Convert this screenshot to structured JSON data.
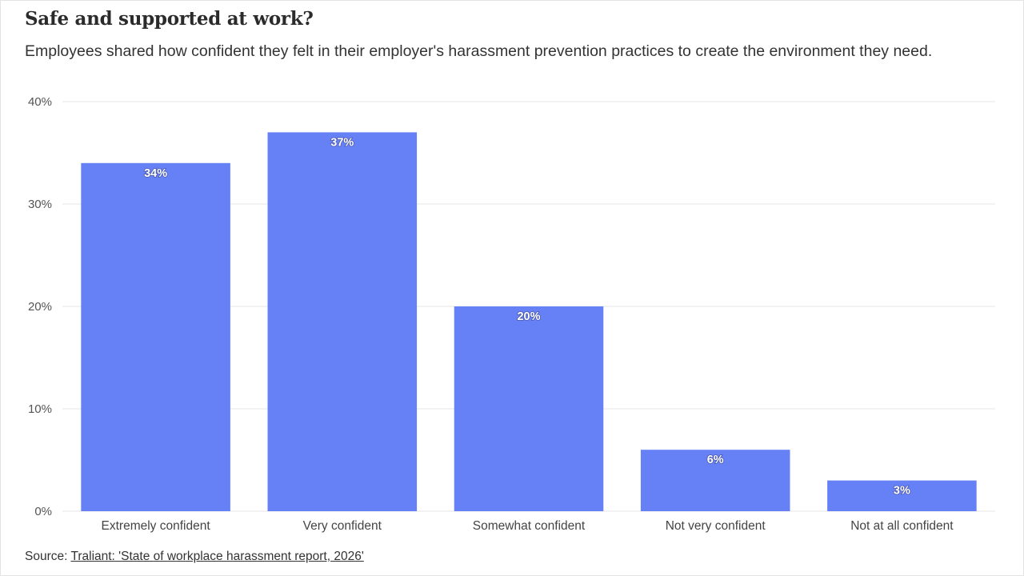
{
  "title": "Safe and supported at work?",
  "subtitle": "Employees shared how confident they felt in their employer's harassment prevention practices to create the environment they need.",
  "source": {
    "prefix": "Source: ",
    "link_text": "Traliant: 'State of workplace harassment report, 2026'"
  },
  "colors": {
    "bar": "#6680f5",
    "grid": "#e6e6e6",
    "axis_text": "#555555",
    "label_text": "#ffffff"
  },
  "chart_data": {
    "type": "bar",
    "categories": [
      "Extremely confident",
      "Very confident",
      "Somewhat confident",
      "Not very confident",
      "Not at all confident"
    ],
    "values": [
      34,
      37,
      20,
      6,
      3
    ],
    "value_labels": [
      "34%",
      "37%",
      "20%",
      "6%",
      "3%"
    ],
    "y_ticks": [
      0,
      10,
      20,
      30,
      40
    ],
    "y_tick_labels": [
      "0%",
      "10%",
      "20%",
      "30%",
      "40%"
    ],
    "ylim": [
      0,
      40
    ],
    "grid": true,
    "legend": false
  }
}
